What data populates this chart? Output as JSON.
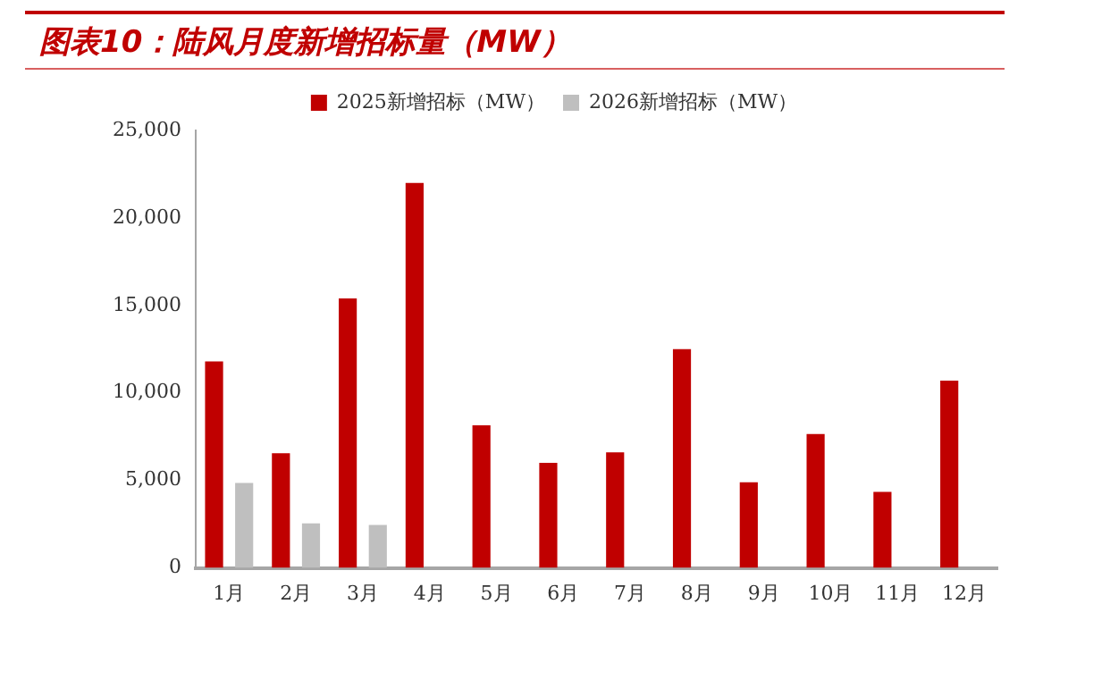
{
  "chart_data": {
    "type": "bar",
    "title": "图表10：陆风月度新增招标量（MW）",
    "categories": [
      "1月",
      "2月",
      "3月",
      "4月",
      "5月",
      "6月",
      "7月",
      "8月",
      "9月",
      "10月",
      "11月",
      "12月"
    ],
    "series": [
      {
        "name": "2025新增招标（MW）",
        "color": "#c00000",
        "values": [
          11800,
          6550,
          15400,
          22000,
          8150,
          6000,
          6600,
          12500,
          4900,
          7650,
          4350,
          10700
        ]
      },
      {
        "name": "2026新增招标（MW）",
        "color": "#bfbfbf",
        "values": [
          4850,
          2550,
          2450,
          null,
          null,
          null,
          null,
          null,
          null,
          null,
          null,
          null
        ]
      }
    ],
    "ylim": [
      0,
      25000
    ],
    "yticks": [
      0,
      {
        "value": 5000,
        "label": "5,000"
      },
      {
        "value": 10000,
        "label": "10,000"
      },
      {
        "value": 15000,
        "label": "15,000"
      },
      {
        "value": 20000,
        "label": "20,000"
      },
      {
        "value": 25000,
        "label": "25,000"
      }
    ],
    "grid": false,
    "legend": "top"
  }
}
